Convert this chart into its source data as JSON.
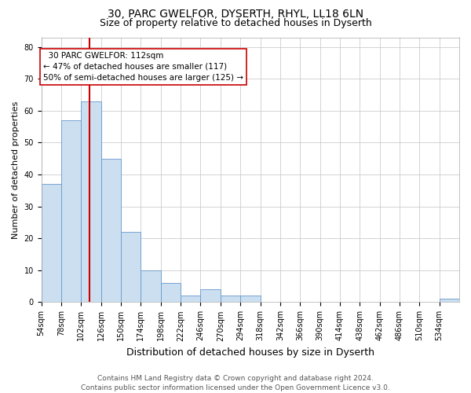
{
  "title1": "30, PARC GWELFOR, DYSERTH, RHYL, LL18 6LN",
  "title2": "Size of property relative to detached houses in Dyserth",
  "xlabel": "Distribution of detached houses by size in Dyserth",
  "ylabel": "Number of detached properties",
  "bin_labels": [
    "54sqm",
    "78sqm",
    "102sqm",
    "126sqm",
    "150sqm",
    "174sqm",
    "198sqm",
    "222sqm",
    "246sqm",
    "270sqm",
    "294sqm",
    "318sqm",
    "342sqm",
    "366sqm",
    "390sqm",
    "414sqm",
    "438sqm",
    "462sqm",
    "486sqm",
    "510sqm",
    "534sqm"
  ],
  "bin_edges": [
    54,
    78,
    102,
    126,
    150,
    174,
    198,
    222,
    246,
    270,
    294,
    318,
    342,
    366,
    390,
    414,
    438,
    462,
    486,
    510,
    534,
    558
  ],
  "values": [
    37,
    57,
    63,
    45,
    22,
    10,
    6,
    2,
    4,
    2,
    2,
    0,
    0,
    0,
    0,
    0,
    0,
    0,
    0,
    0,
    1
  ],
  "bar_color": "#ccdff0",
  "bar_edge_color": "#6699cc",
  "vline_x": 112,
  "vline_color": "#cc0000",
  "annotation_text": "  30 PARC GWELFOR: 112sqm\n← 47% of detached houses are smaller (117)\n50% of semi-detached houses are larger (125) →",
  "annotation_box_color": "white",
  "annotation_box_edge": "#cc0000",
  "ylim": [
    0,
    83
  ],
  "yticks": [
    0,
    10,
    20,
    30,
    40,
    50,
    60,
    70,
    80
  ],
  "grid_color": "#cccccc",
  "footnote": "Contains HM Land Registry data © Crown copyright and database right 2024.\nContains public sector information licensed under the Open Government Licence v3.0.",
  "title1_fontsize": 10,
  "title2_fontsize": 9,
  "xlabel_fontsize": 9,
  "ylabel_fontsize": 8,
  "tick_fontsize": 7,
  "annot_fontsize": 7.5,
  "footnote_fontsize": 6.5
}
